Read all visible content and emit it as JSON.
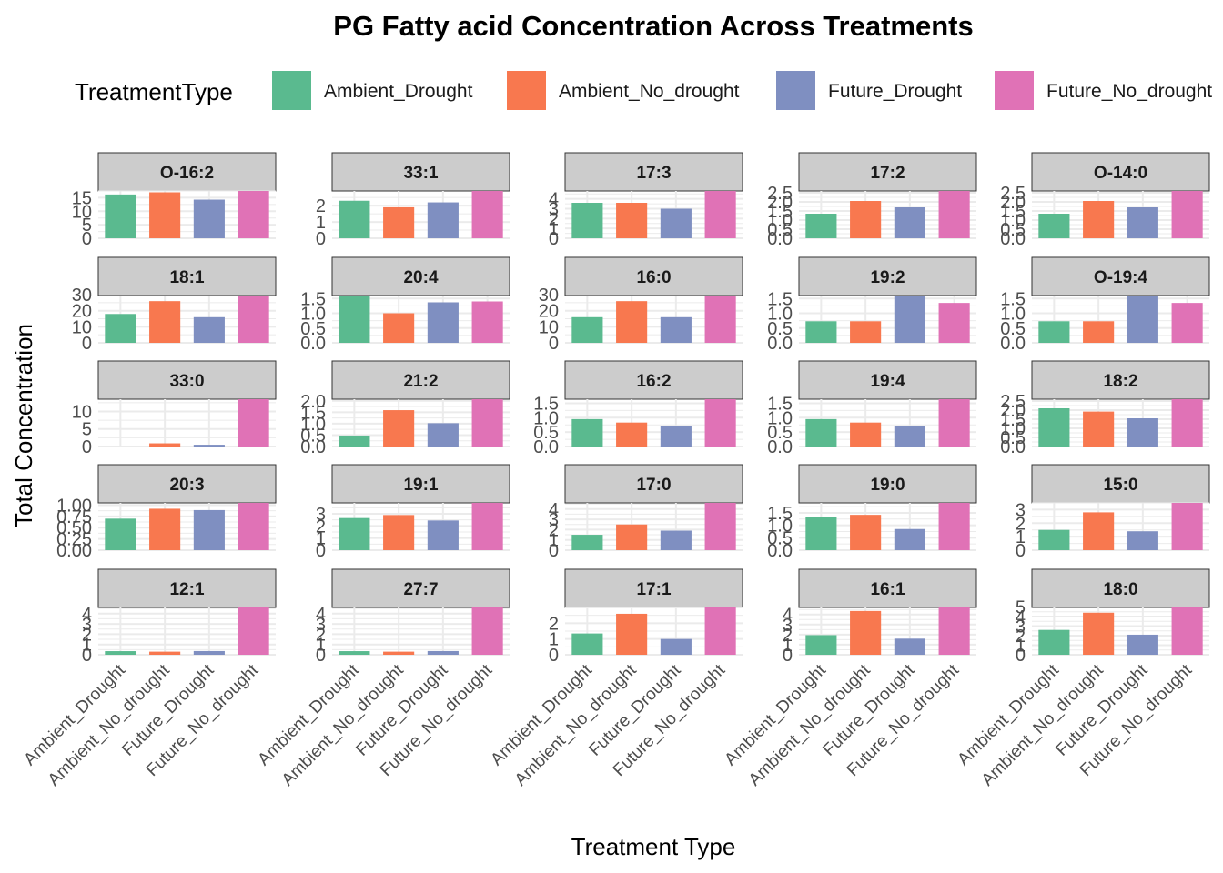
{
  "chart_data": {
    "type": "bar",
    "title": "PG  Fatty acid Concentration Across Treatments",
    "xlabel": "Treatment Type",
    "ylabel": "Total Concentration",
    "legend": {
      "title": "TreatmentType",
      "placement": "top",
      "entries": [
        {
          "name": "Ambient_Drought",
          "color": "#5ABA8F"
        },
        {
          "name": "Ambient_No_drought",
          "color": "#F8784F"
        },
        {
          "name": "Future_Drought",
          "color": "#7F8FC1"
        },
        {
          "name": "Future_No_drought",
          "color": "#E072B6"
        }
      ]
    },
    "categories": [
      "Ambient_Drought",
      "Ambient_No_drought",
      "Future_Drought",
      "Future_No_drought"
    ],
    "grid": true,
    "facets": [
      {
        "label": "O-16:2",
        "values": [
          16.2,
          17.0,
          14.3,
          17.5
        ],
        "ylim": [
          0,
          17.5
        ],
        "ticks": [
          "0",
          "5",
          "10",
          "15"
        ],
        "tickValues": [
          0,
          5,
          10,
          15
        ]
      },
      {
        "label": "33:1",
        "values": [
          2.3,
          1.9,
          2.2,
          2.9
        ],
        "ylim": [
          0,
          2.9
        ],
        "ticks": [
          "0",
          "1",
          "2"
        ],
        "tickValues": [
          0,
          1,
          2
        ]
      },
      {
        "label": "17:3",
        "values": [
          3.6,
          3.6,
          3.0,
          4.8
        ],
        "ylim": [
          0,
          4.8
        ],
        "ticks": [
          "0",
          "1",
          "2",
          "3",
          "4"
        ],
        "tickValues": [
          0,
          1,
          2,
          3,
          4
        ]
      },
      {
        "label": "17:2",
        "values": [
          1.35,
          2.05,
          1.7,
          2.6
        ],
        "ylim": [
          0,
          2.6
        ],
        "ticks": [
          "0.0",
          "0.5",
          "1.0",
          "1.5",
          "2.0",
          "2.5"
        ],
        "tickValues": [
          0,
          0.5,
          1.0,
          1.5,
          2.0,
          2.5
        ]
      },
      {
        "label": "O-14:0",
        "values": [
          1.35,
          2.05,
          1.7,
          2.6
        ],
        "ylim": [
          0,
          2.6
        ],
        "ticks": [
          "0.0",
          "0.5",
          "1.0",
          "1.5",
          "2.0",
          "2.5"
        ],
        "tickValues": [
          0,
          0.5,
          1.0,
          1.5,
          2.0,
          2.5
        ]
      },
      {
        "label": "18:1",
        "values": [
          18,
          26,
          16,
          29.5
        ],
        "ylim": [
          0,
          29.5
        ],
        "ticks": [
          "0",
          "10",
          "20",
          "30"
        ],
        "tickValues": [
          0,
          10,
          20,
          30
        ]
      },
      {
        "label": "20:4",
        "values": [
          1.6,
          1.0,
          1.37,
          1.4
        ],
        "ylim": [
          0,
          1.6
        ],
        "ticks": [
          "0.0",
          "0.5",
          "1.0",
          "1.5"
        ],
        "tickValues": [
          0,
          0.5,
          1.0,
          1.5
        ]
      },
      {
        "label": "16:0",
        "values": [
          16,
          26,
          16,
          29.5
        ],
        "ylim": [
          0,
          29.5
        ],
        "ticks": [
          "0",
          "10",
          "20",
          "30"
        ],
        "tickValues": [
          0,
          10,
          20,
          30
        ]
      },
      {
        "label": "19:2",
        "values": [
          0.73,
          0.73,
          1.6,
          1.35
        ],
        "ylim": [
          0,
          1.6
        ],
        "ticks": [
          "0.0",
          "0.5",
          "1.0",
          "1.5"
        ],
        "tickValues": [
          0,
          0.5,
          1.0,
          1.5
        ]
      },
      {
        "label": "O-19:4",
        "values": [
          0.73,
          0.73,
          1.6,
          1.35
        ],
        "ylim": [
          0,
          1.6
        ],
        "ticks": [
          "0.0",
          "0.5",
          "1.0",
          "1.5"
        ],
        "tickValues": [
          0,
          0.5,
          1.0,
          1.5
        ]
      },
      {
        "label": "33:0",
        "values": [
          0.0,
          0.9,
          0.5,
          13.5
        ],
        "ylim": [
          0,
          13.5
        ],
        "ticks": [
          "0",
          "5",
          "10"
        ],
        "tickValues": [
          0,
          5,
          10
        ]
      },
      {
        "label": "21:2",
        "values": [
          0.48,
          1.59,
          1.02,
          2.07
        ],
        "ylim": [
          0,
          2.07
        ],
        "ticks": [
          "0.0",
          "0.5",
          "1.0",
          "1.5",
          "2.0"
        ],
        "tickValues": [
          0,
          0.5,
          1.0,
          1.5,
          2.0
        ]
      },
      {
        "label": "16:2",
        "values": [
          0.95,
          0.83,
          0.71,
          1.64
        ],
        "ylim": [
          0,
          1.64
        ],
        "ticks": [
          "0.0",
          "0.5",
          "1.0",
          "1.5"
        ],
        "tickValues": [
          0,
          0.5,
          1.0,
          1.5
        ]
      },
      {
        "label": "19:4",
        "values": [
          0.95,
          0.83,
          0.71,
          1.64
        ],
        "ylim": [
          0,
          1.64
        ],
        "ticks": [
          "0.0",
          "0.5",
          "1.0",
          "1.5"
        ],
        "tickValues": [
          0,
          0.5,
          1.0,
          1.5
        ]
      },
      {
        "label": "18:2",
        "values": [
          2.1,
          1.92,
          1.55,
          2.6
        ],
        "ylim": [
          0,
          2.6
        ],
        "ticks": [
          "0.0",
          "0.5",
          "1.0",
          "1.5",
          "2.0",
          "2.5"
        ],
        "tickValues": [
          0,
          0.5,
          1.0,
          1.5,
          2.0,
          2.5
        ]
      },
      {
        "label": "20:3",
        "values": [
          0.7,
          0.92,
          0.89,
          1.05
        ],
        "ylim": [
          0,
          1.05
        ],
        "ticks": [
          "0.00",
          "0.25",
          "0.50",
          "0.75",
          "1.00"
        ],
        "tickValues": [
          0,
          0.25,
          0.5,
          0.75,
          1.0
        ]
      },
      {
        "label": "19:1",
        "values": [
          2.65,
          2.9,
          2.45,
          3.9
        ],
        "ylim": [
          0,
          3.9
        ],
        "ticks": [
          "0",
          "1",
          "2",
          "3"
        ],
        "tickValues": [
          0,
          1,
          2,
          3
        ]
      },
      {
        "label": "17:0",
        "values": [
          1.5,
          2.5,
          1.9,
          4.6
        ],
        "ylim": [
          0,
          4.6
        ],
        "ticks": [
          "0",
          "1",
          "2",
          "3",
          "4"
        ],
        "tickValues": [
          0,
          1,
          2,
          3,
          4
        ]
      },
      {
        "label": "19:0",
        "values": [
          1.35,
          1.42,
          0.85,
          1.9
        ],
        "ylim": [
          0,
          1.9
        ],
        "ticks": [
          "0.0",
          "0.5",
          "1.0",
          "1.5"
        ],
        "tickValues": [
          0,
          0.5,
          1.0,
          1.5
        ]
      },
      {
        "label": "15:0",
        "values": [
          1.5,
          2.8,
          1.4,
          3.5
        ],
        "ylim": [
          0,
          3.5
        ],
        "ticks": [
          "0",
          "1",
          "2",
          "3"
        ],
        "tickValues": [
          0,
          1,
          2,
          3
        ]
      },
      {
        "label": "12:1",
        "values": [
          0.35,
          0.3,
          0.36,
          4.6
        ],
        "ylim": [
          0,
          4.6
        ],
        "ticks": [
          "0",
          "1",
          "2",
          "3",
          "4"
        ],
        "tickValues": [
          0,
          1,
          2,
          3,
          4
        ]
      },
      {
        "label": "27:7",
        "values": [
          0.35,
          0.3,
          0.36,
          4.6
        ],
        "ylim": [
          0,
          4.6
        ],
        "ticks": [
          "0",
          "1",
          "2",
          "3",
          "4"
        ],
        "tickValues": [
          0,
          1,
          2,
          3,
          4
        ]
      },
      {
        "label": "17:1",
        "values": [
          1.35,
          2.6,
          1.0,
          3.0
        ],
        "ylim": [
          0,
          3.0
        ],
        "ticks": [
          "0",
          "1",
          "2"
        ],
        "tickValues": [
          0,
          1,
          2
        ]
      },
      {
        "label": "16:1",
        "values": [
          1.95,
          4.35,
          1.6,
          4.7
        ],
        "ylim": [
          0,
          4.7
        ],
        "ticks": [
          "0",
          "1",
          "2",
          "3",
          "4"
        ],
        "tickValues": [
          0,
          1,
          2,
          3,
          4
        ]
      },
      {
        "label": "18:0",
        "values": [
          2.6,
          4.4,
          2.1,
          4.95
        ],
        "ylim": [
          0,
          4.95
        ],
        "ticks": [
          "0",
          "1",
          "2",
          "3",
          "4",
          "5"
        ],
        "tickValues": [
          0,
          1,
          2,
          3,
          4,
          5
        ]
      }
    ]
  }
}
